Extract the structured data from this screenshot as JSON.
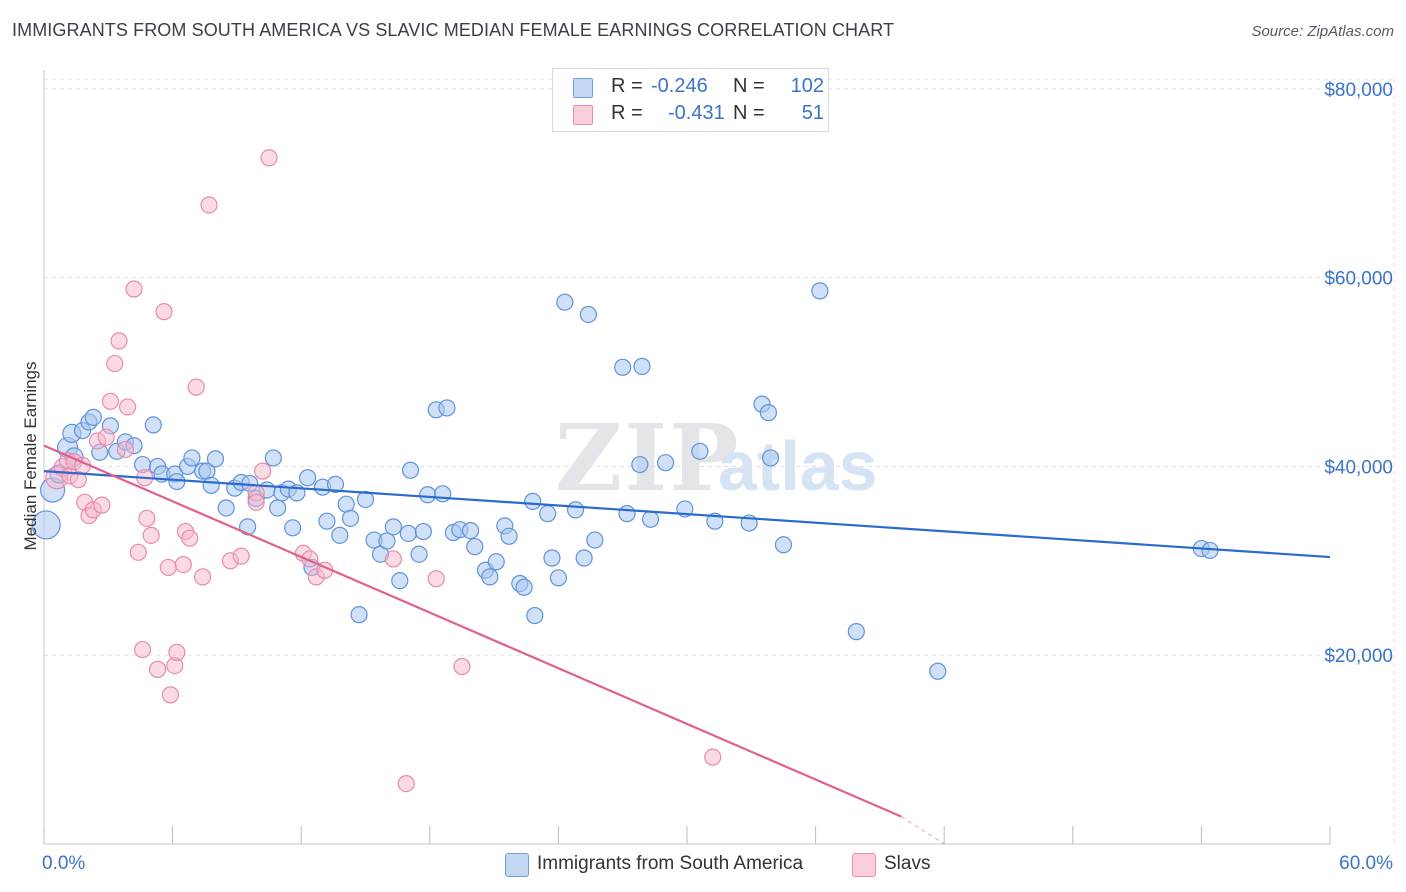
{
  "title": "IMMIGRANTS FROM SOUTH AMERICA VS SLAVIC MEDIAN FEMALE EARNINGS CORRELATION CHART",
  "source": "Source: ZipAtlas.com",
  "watermark": {
    "part1": "ZIP",
    "part2": "atlas"
  },
  "colors": {
    "blue": "#3b73c8",
    "blue_fill": "#aac8f0",
    "blue_line": "#2a6bcc",
    "pink": "#e87aa0",
    "pink_fill": "#f6b8cb",
    "pink_line": "#e0608c",
    "grid": "#dde1e6"
  },
  "legend_stats": [
    {
      "r_label": "R =",
      "r_value": "-0.246",
      "n_label": "N =",
      "n_value": "102",
      "color": "#aac8f0"
    },
    {
      "r_label": "R =",
      "r_value": "-0.431",
      "n_label": "N =",
      "n_value": "51",
      "color": "#f6b8cb"
    }
  ],
  "chart_data": {
    "type": "scatter",
    "xlabel": "",
    "ylabel": "Median Female Earnings",
    "xlim": [
      0,
      60
    ],
    "ylim": [
      0,
      82000
    ],
    "x_tick_labels": [
      {
        "value": 0,
        "label": "0.0%"
      },
      {
        "value": 60,
        "label": "60.0%"
      }
    ],
    "y_tick_labels": [
      {
        "value": 20000,
        "label": "$20,000"
      },
      {
        "value": 40000,
        "label": "$40,000"
      },
      {
        "value": 60000,
        "label": "$60,000"
      },
      {
        "value": 80000,
        "label": "$80,000"
      }
    ],
    "grid": true,
    "legend_position": "bottom",
    "series": [
      {
        "name": "Immigrants from South America",
        "color": "#aac8f0",
        "trend": {
          "x": [
            0,
            60
          ],
          "y": [
            39500,
            30400
          ]
        },
        "points": [
          [
            0.1,
            33800,
            14
          ],
          [
            0.4,
            37500,
            12
          ],
          [
            0.7,
            39200,
            9
          ],
          [
            1.1,
            42000,
            10
          ],
          [
            1.4,
            41000,
            9
          ],
          [
            1.3,
            43500,
            9
          ],
          [
            1.8,
            43800,
            8
          ],
          [
            2.1,
            44700,
            8
          ],
          [
            2.3,
            45200,
            8
          ],
          [
            2.6,
            41500,
            8
          ],
          [
            3.1,
            44300,
            8
          ],
          [
            3.4,
            41600,
            8
          ],
          [
            3.8,
            42600,
            8
          ],
          [
            4.2,
            42200,
            8
          ],
          [
            4.6,
            40200,
            8
          ],
          [
            5.1,
            44400,
            8
          ],
          [
            5.3,
            40000,
            8
          ],
          [
            5.5,
            39200,
            8
          ],
          [
            6.1,
            39200,
            8
          ],
          [
            6.2,
            38400,
            8
          ],
          [
            6.7,
            40000,
            8
          ],
          [
            6.9,
            40900,
            8
          ],
          [
            7.4,
            39500,
            8
          ],
          [
            7.6,
            39500,
            8
          ],
          [
            7.8,
            38000,
            8
          ],
          [
            8.0,
            40800,
            8
          ],
          [
            8.5,
            35600,
            8
          ],
          [
            8.9,
            37700,
            8
          ],
          [
            9.2,
            38300,
            8
          ],
          [
            9.6,
            38200,
            8
          ],
          [
            9.5,
            33600,
            8
          ],
          [
            9.9,
            36600,
            8
          ],
          [
            10.4,
            37500,
            8
          ],
          [
            10.7,
            40900,
            8
          ],
          [
            10.9,
            35600,
            8
          ],
          [
            11.1,
            37200,
            8
          ],
          [
            11.4,
            37600,
            8
          ],
          [
            11.6,
            33500,
            8
          ],
          [
            11.8,
            37200,
            8
          ],
          [
            12.3,
            38800,
            8
          ],
          [
            12.5,
            29300,
            8
          ],
          [
            13.0,
            37800,
            8
          ],
          [
            13.2,
            34200,
            8
          ],
          [
            13.6,
            38100,
            8
          ],
          [
            13.8,
            32700,
            8
          ],
          [
            14.1,
            36000,
            8
          ],
          [
            14.3,
            34500,
            8
          ],
          [
            14.7,
            24300,
            8
          ],
          [
            15.0,
            36500,
            8
          ],
          [
            15.4,
            32200,
            8
          ],
          [
            15.7,
            30700,
            8
          ],
          [
            16.0,
            32100,
            8
          ],
          [
            16.3,
            33600,
            8
          ],
          [
            16.6,
            27900,
            8
          ],
          [
            17.0,
            32900,
            8
          ],
          [
            17.1,
            39600,
            8
          ],
          [
            17.5,
            30700,
            8
          ],
          [
            17.7,
            33100,
            8
          ],
          [
            17.9,
            37000,
            8
          ],
          [
            18.3,
            46000,
            8
          ],
          [
            18.6,
            37100,
            8
          ],
          [
            18.8,
            46200,
            8
          ],
          [
            19.1,
            33000,
            8
          ],
          [
            19.4,
            33300,
            8
          ],
          [
            19.9,
            33200,
            8
          ],
          [
            20.1,
            31500,
            8
          ],
          [
            20.6,
            29000,
            8
          ],
          [
            20.8,
            28300,
            8
          ],
          [
            21.1,
            29900,
            8
          ],
          [
            21.5,
            33700,
            8
          ],
          [
            21.7,
            32600,
            8
          ],
          [
            22.2,
            27600,
            8
          ],
          [
            22.4,
            27200,
            8
          ],
          [
            22.8,
            36300,
            8
          ],
          [
            22.9,
            24200,
            8
          ],
          [
            23.5,
            35000,
            8
          ],
          [
            23.7,
            30300,
            8
          ],
          [
            24.0,
            28200,
            8
          ],
          [
            24.3,
            57400,
            8
          ],
          [
            24.8,
            35400,
            8
          ],
          [
            25.2,
            30300,
            8
          ],
          [
            25.4,
            56100,
            8
          ],
          [
            25.7,
            32200,
            8
          ],
          [
            27.0,
            50500,
            8
          ],
          [
            27.2,
            35000,
            8
          ],
          [
            27.8,
            40200,
            8
          ],
          [
            27.9,
            50600,
            8
          ],
          [
            28.3,
            34400,
            8
          ],
          [
            29.0,
            40400,
            8
          ],
          [
            29.9,
            35500,
            8
          ],
          [
            30.6,
            41600,
            8
          ],
          [
            31.3,
            34200,
            8
          ],
          [
            32.9,
            34000,
            8
          ],
          [
            33.5,
            46600,
            8
          ],
          [
            33.8,
            45700,
            8
          ],
          [
            33.9,
            40900,
            8
          ],
          [
            34.5,
            31700,
            8
          ],
          [
            36.2,
            58600,
            8
          ],
          [
            37.9,
            22500,
            8
          ],
          [
            41.7,
            18300,
            8
          ],
          [
            54.0,
            31300,
            8
          ],
          [
            54.4,
            31100,
            8
          ]
        ]
      },
      {
        "name": "Slavs",
        "color": "#f6b8cb",
        "trend": {
          "x": [
            0,
            40
          ],
          "y": [
            42200,
            2900
          ],
          "dash_to": {
            "x": 42.0,
            "y": 0
          }
        },
        "points": [
          [
            0.6,
            38800,
            11
          ],
          [
            0.9,
            39900,
            9
          ],
          [
            1.1,
            40600,
            8
          ],
          [
            1.2,
            39000,
            8
          ],
          [
            1.4,
            40500,
            8
          ],
          [
            1.6,
            38600,
            8
          ],
          [
            1.8,
            40100,
            8
          ],
          [
            1.9,
            36200,
            8
          ],
          [
            2.1,
            34800,
            8
          ],
          [
            2.3,
            35400,
            8
          ],
          [
            2.5,
            42700,
            8
          ],
          [
            2.7,
            35900,
            8
          ],
          [
            2.9,
            43100,
            8
          ],
          [
            3.1,
            46900,
            8
          ],
          [
            3.3,
            50900,
            8
          ],
          [
            3.5,
            53300,
            8
          ],
          [
            3.8,
            41800,
            8
          ],
          [
            3.9,
            46300,
            8
          ],
          [
            4.2,
            58800,
            8
          ],
          [
            4.4,
            30900,
            8
          ],
          [
            4.6,
            20600,
            8
          ],
          [
            4.7,
            38800,
            8
          ],
          [
            4.8,
            34500,
            8
          ],
          [
            5.0,
            32700,
            8
          ],
          [
            5.3,
            18500,
            8
          ],
          [
            5.6,
            56400,
            8
          ],
          [
            5.8,
            29300,
            8
          ],
          [
            5.9,
            15800,
            8
          ],
          [
            6.1,
            18900,
            8
          ],
          [
            6.2,
            20300,
            8
          ],
          [
            6.5,
            29600,
            8
          ],
          [
            6.6,
            33100,
            8
          ],
          [
            6.8,
            32400,
            8
          ],
          [
            7.1,
            48400,
            8
          ],
          [
            7.4,
            28300,
            8
          ],
          [
            7.7,
            67700,
            8
          ],
          [
            8.7,
            30000,
            8
          ],
          [
            9.2,
            30500,
            8
          ],
          [
            9.9,
            37200,
            8
          ],
          [
            9.9,
            36200,
            8
          ],
          [
            10.2,
            39500,
            8
          ],
          [
            10.5,
            72700,
            8
          ],
          [
            12.1,
            30800,
            8
          ],
          [
            12.4,
            30200,
            8
          ],
          [
            12.7,
            28300,
            8
          ],
          [
            13.1,
            29000,
            8
          ],
          [
            16.3,
            30200,
            8
          ],
          [
            16.9,
            6400,
            8
          ],
          [
            18.3,
            28100,
            8
          ],
          [
            19.5,
            18800,
            8
          ],
          [
            31.2,
            9200,
            8
          ]
        ]
      }
    ]
  }
}
